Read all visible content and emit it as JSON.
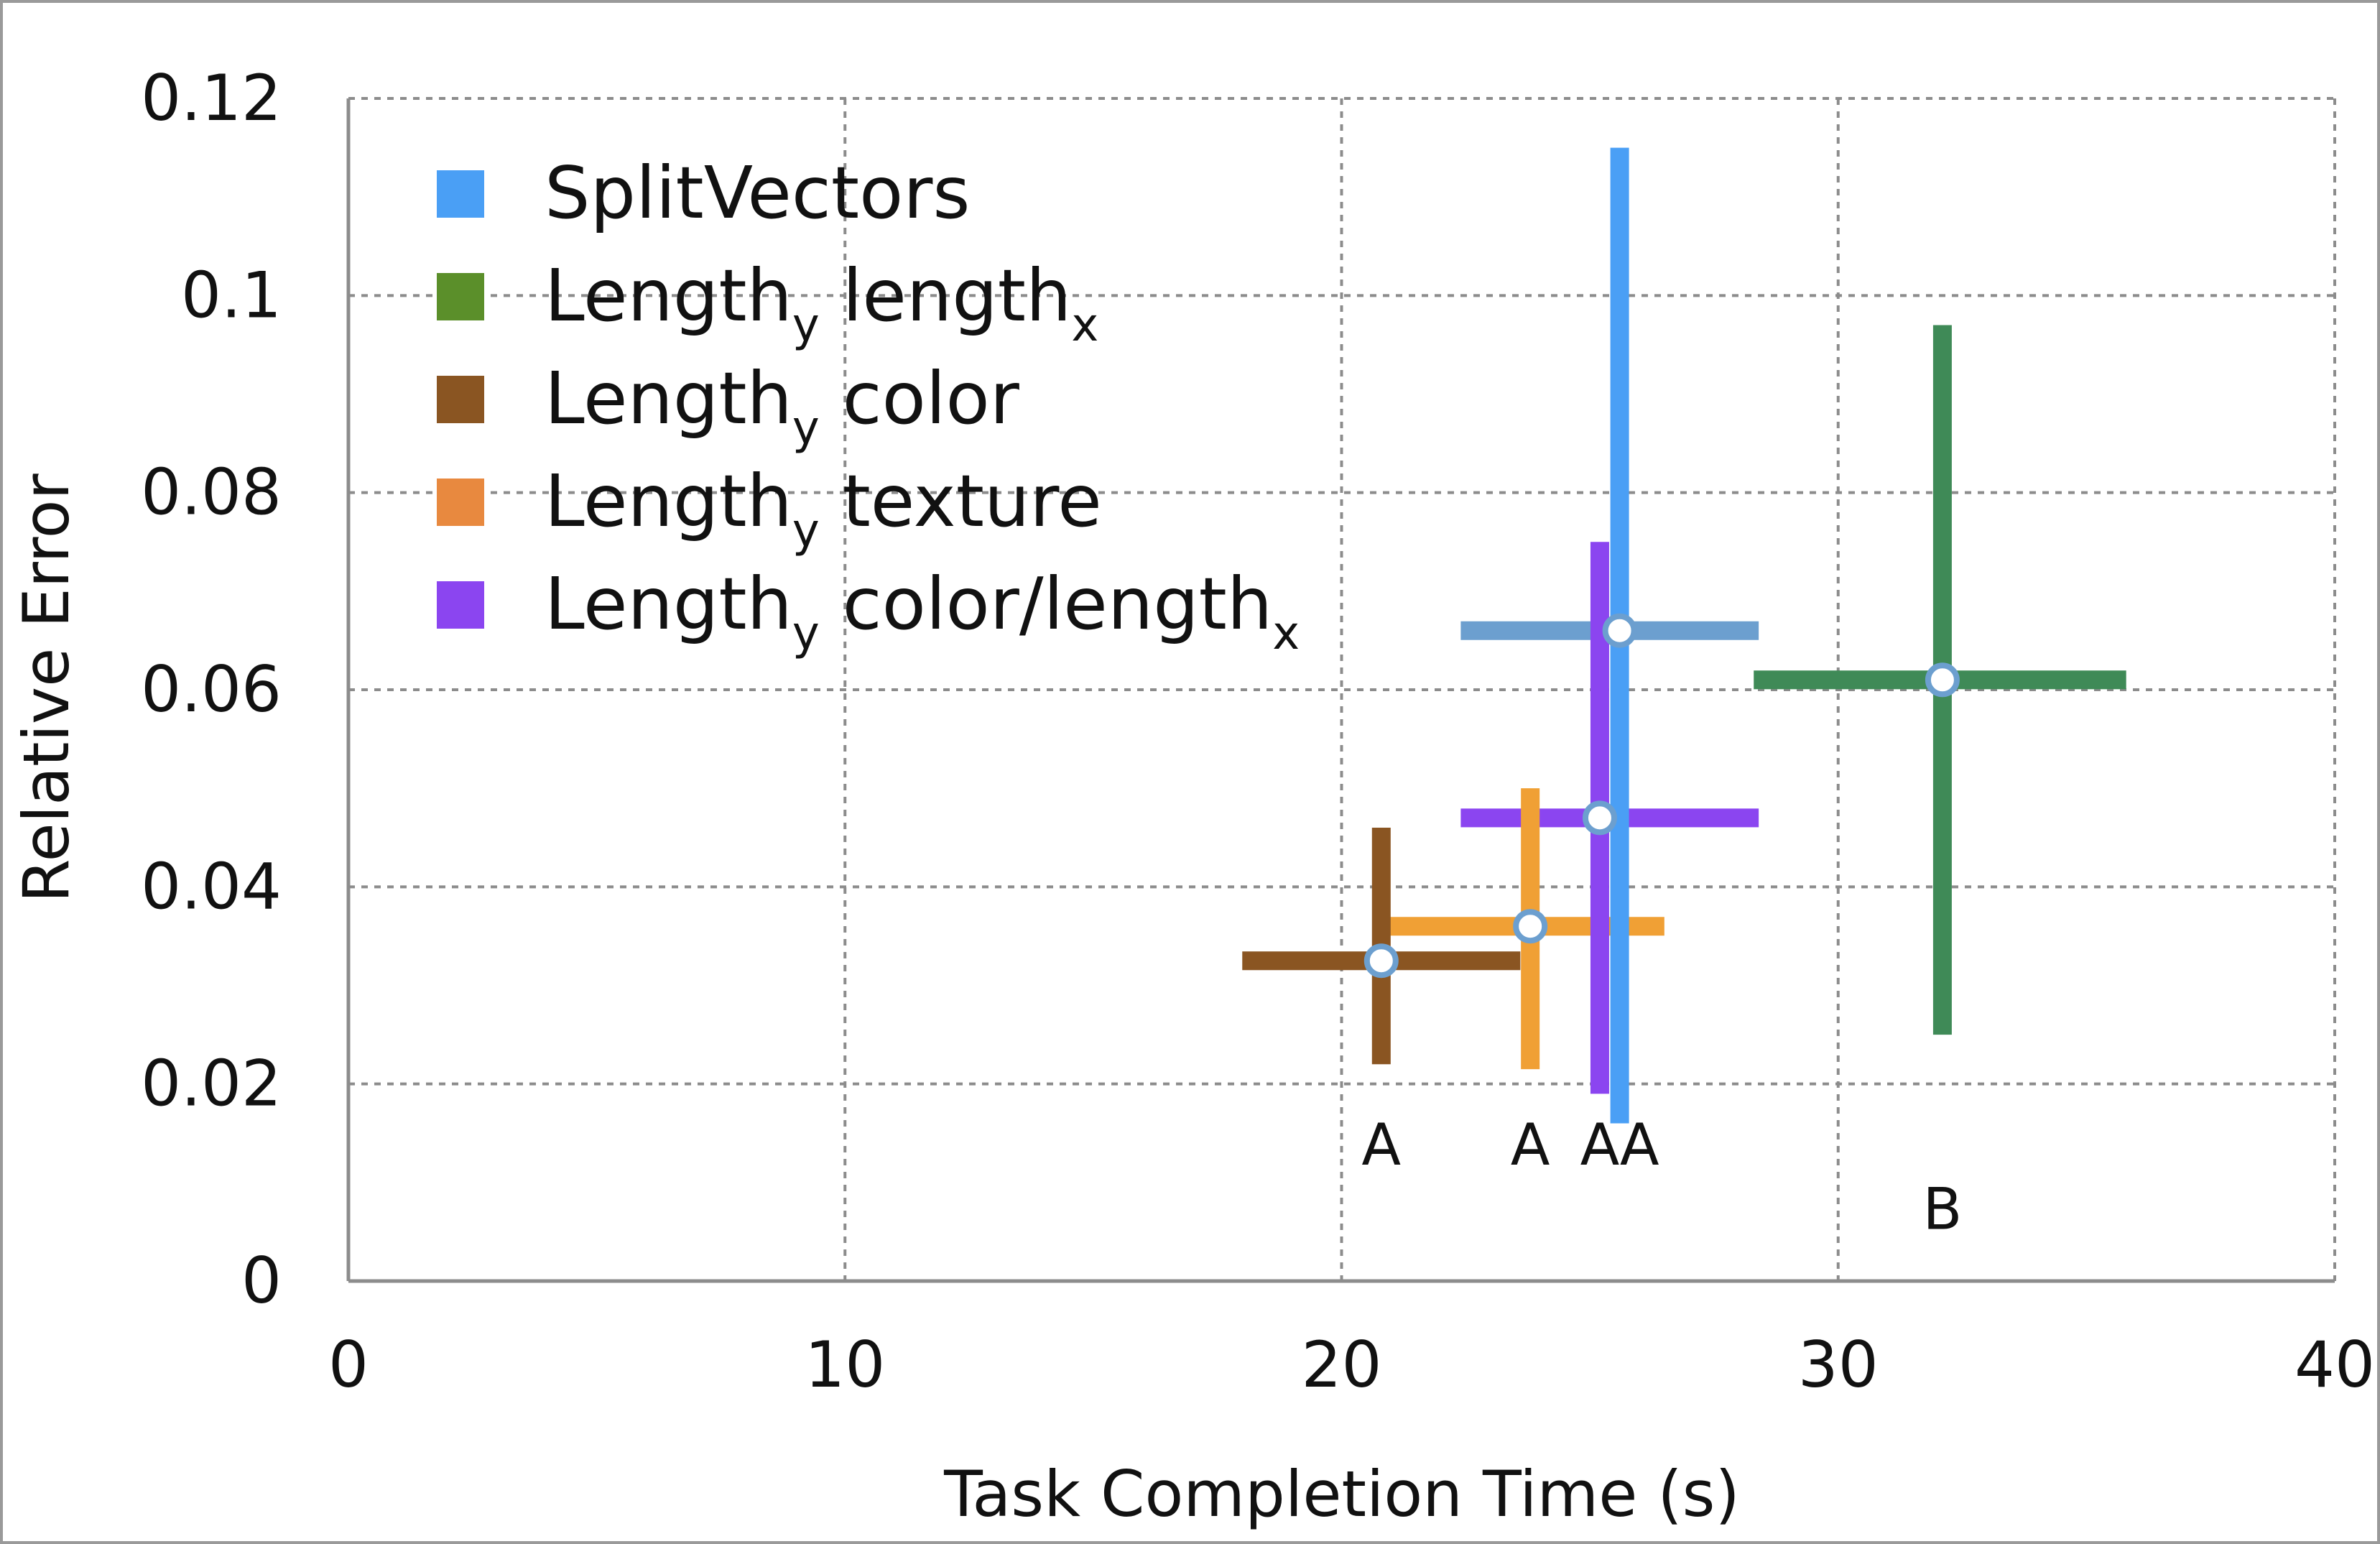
{
  "chart_data": {
    "type": "scatter",
    "title": "",
    "xlabel": "Task Completion Time (s)",
    "ylabel": "Relative Error",
    "xlim": [
      0,
      40
    ],
    "ylim": [
      0,
      0.12
    ],
    "x_ticks": [
      "0",
      "10",
      "20",
      "30",
      "40"
    ],
    "y_ticks": [
      "0",
      "0.02",
      "0.04",
      "0.06",
      "0.08",
      "0.1",
      "0.12"
    ],
    "grid": true,
    "legend_position": "top-left",
    "series": [
      {
        "name": "SplitVectors",
        "legend_main": "SplitVectors",
        "legend_sub": "",
        "legend_rest": "",
        "legend_sub2": "",
        "color": "#4a9ff5",
        "hbar_color": "#6c9fcf",
        "x": 25.6,
        "y": 0.066,
        "x_err": [
          22.4,
          28.4
        ],
        "y_err": [
          0.016,
          0.115
        ]
      },
      {
        "name": "Lengthy lengthx",
        "legend_main": "Length",
        "legend_sub": "y",
        "legend_rest": " length",
        "legend_sub2": "x",
        "color": "#3f8a57",
        "hbar_color": "#3f8a57",
        "legend_color": "#5b8f2a",
        "x": 32.1,
        "y": 0.061,
        "x_err": [
          28.3,
          35.8
        ],
        "y_err": [
          0.025,
          0.097
        ]
      },
      {
        "name": "Lengthy color",
        "legend_main": "Length",
        "legend_sub": "y",
        "legend_rest": " color",
        "legend_sub2": "",
        "color": "#8a5522",
        "hbar_color": "#8a5522",
        "x": 20.8,
        "y": 0.0325,
        "x_err": [
          18.0,
          23.6
        ],
        "y_err": [
          0.022,
          0.046
        ]
      },
      {
        "name": "Lengthy texture",
        "legend_main": "Length",
        "legend_sub": "y",
        "legend_rest": " texture",
        "legend_sub2": "",
        "color": "#f0a035",
        "hbar_color": "#f0a035",
        "legend_color": "#e8893f",
        "x": 23.8,
        "y": 0.036,
        "x_err": [
          20.8,
          26.5
        ],
        "y_err": [
          0.0215,
          0.05
        ]
      },
      {
        "name": "Lengthy color/lengthx",
        "legend_main": "Length",
        "legend_sub": "y",
        "legend_rest": " color/length",
        "legend_sub2": "x",
        "color": "#8b45f0",
        "hbar_color": "#8b45f0",
        "x": 25.2,
        "y": 0.047,
        "x_err": [
          22.4,
          28.4
        ],
        "y_err": [
          0.019,
          0.075
        ]
      }
    ],
    "group_labels": [
      {
        "text": "A",
        "x": 20.8,
        "y": 0.0118
      },
      {
        "text": "A",
        "x": 23.8,
        "y": 0.0118
      },
      {
        "text": "A",
        "x": 25.2,
        "y": 0.0118
      },
      {
        "text": "A",
        "x": 26.0,
        "y": 0.0118
      },
      {
        "text": "B",
        "x": 32.1,
        "y": 0.0053
      }
    ]
  }
}
